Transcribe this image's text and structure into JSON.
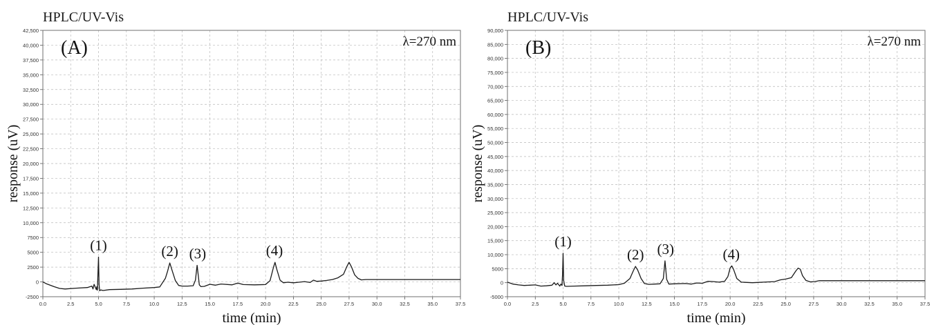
{
  "chart_data": [
    {
      "type": "line",
      "instrument_title": "HPLC/UV-Vis",
      "panel_label": "(A)",
      "wavelength_label": "λ=270 nm",
      "xlabel": "time (min)",
      "ylabel": "response (uV)",
      "xlim": [
        0,
        37.5
      ],
      "ylim": [
        -2500,
        42500
      ],
      "x_ticks": [
        0,
        2.5,
        5,
        7.5,
        10,
        12.5,
        15,
        17.5,
        20,
        22.5,
        25,
        27.5,
        30,
        32.5,
        35,
        37.5
      ],
      "x_tick_labels": [
        "0.0",
        "2.5",
        "5.0",
        "7.5",
        "10.0",
        "12.5",
        "15.0",
        "17.5",
        "20.0",
        "22.5",
        "25.0",
        "27.5",
        "30.0",
        "32.5",
        "35.0",
        "37.5"
      ],
      "y_ticks": [
        -2500,
        0,
        2500,
        5000,
        7500,
        10000,
        12500,
        15000,
        17500,
        20000,
        22500,
        25000,
        27500,
        30000,
        32500,
        35000,
        37500,
        40000,
        42500
      ],
      "y_tick_labels": [
        "-2500",
        "0",
        "2500",
        "5000",
        "7500",
        "10,000",
        "12,500",
        "15,000",
        "17,500",
        "20,000",
        "22,500",
        "25,000",
        "27,500",
        "30,000",
        "32,500",
        "35,000",
        "37,500",
        "40,000",
        "42,500"
      ],
      "grid": true,
      "peak_labels": [
        {
          "label": "(1)",
          "x": 5.0,
          "y": 4200
        },
        {
          "label": "(2)",
          "x": 11.4,
          "y": 3200
        },
        {
          "label": "(3)",
          "x": 13.9,
          "y": 2800
        },
        {
          "label": "(4)",
          "x": 20.8,
          "y": 3300
        }
      ],
      "series": [
        {
          "x": [
            0,
            0.3,
            1,
            1.5,
            2,
            3,
            4,
            4.4,
            4.5,
            4.6,
            4.8,
            4.85,
            4.9,
            4.95,
            5.0,
            5.05,
            5.1,
            5.2,
            5.4,
            6,
            7,
            8,
            9,
            10,
            10.5,
            11,
            11.2,
            11.4,
            11.6,
            11.9,
            12.2,
            12.5,
            13,
            13.5,
            13.7,
            13.85,
            13.95,
            14.05,
            14.2,
            14.5,
            15,
            15.5,
            16,
            17,
            17.5,
            18,
            19,
            20,
            20.4,
            20.7,
            20.85,
            21,
            21.3,
            21.6,
            22,
            22.5,
            23,
            23.5,
            24,
            24.3,
            24.6,
            25,
            25.5,
            26,
            26.5,
            27,
            27.3,
            27.5,
            27.7,
            28,
            28.3,
            28.6,
            29,
            30,
            32.5,
            35,
            37.5
          ],
          "y": [
            0,
            -300,
            -800,
            -1100,
            -1200,
            -1050,
            -950,
            -700,
            -1200,
            -400,
            -1300,
            -800,
            -1400,
            1500,
            4200,
            -400,
            -1500,
            -1350,
            -1450,
            -1300,
            -1250,
            -1200,
            -1050,
            -950,
            -850,
            600,
            1800,
            3200,
            2000,
            200,
            -600,
            -700,
            -700,
            -650,
            300,
            2800,
            1200,
            -500,
            -800,
            -750,
            -400,
            -550,
            -350,
            -500,
            -200,
            -450,
            -500,
            -450,
            200,
            2400,
            3300,
            2200,
            300,
            -150,
            -50,
            -150,
            -50,
            50,
            -100,
            300,
            100,
            150,
            250,
            400,
            700,
            1300,
            2600,
            3300,
            2600,
            1200,
            600,
            350,
            400,
            400,
            400,
            400,
            400
          ]
        }
      ]
    },
    {
      "type": "line",
      "instrument_title": "HPLC/UV-Vis",
      "panel_label": "(B)",
      "wavelength_label": "λ=270 nm",
      "xlabel": "time (min)",
      "ylabel": "response (uV)",
      "xlim": [
        0,
        37.5
      ],
      "ylim": [
        -5000,
        90000
      ],
      "x_ticks": [
        0,
        2.5,
        5,
        7.5,
        10,
        12.5,
        15,
        17.5,
        20,
        22.5,
        25,
        27.5,
        30,
        32.5,
        35,
        37.5
      ],
      "x_tick_labels": [
        "0.0",
        "2.5",
        "5.0",
        "7.5",
        "10.0",
        "12.5",
        "15.0",
        "17.5",
        "20.0",
        "22.5",
        "25.0",
        "27.5",
        "30.0",
        "32.5",
        "35.0",
        "37.5"
      ],
      "y_ticks": [
        -5000,
        0,
        5000,
        10000,
        15000,
        20000,
        25000,
        30000,
        35000,
        40000,
        45000,
        50000,
        55000,
        60000,
        65000,
        70000,
        75000,
        80000,
        85000,
        90000
      ],
      "y_tick_labels": [
        "-5000",
        "0",
        "5000",
        "10,000",
        "15,000",
        "20,000",
        "25,000",
        "30,000",
        "35,000",
        "40,000",
        "45,000",
        "50,000",
        "55,000",
        "60,000",
        "65,000",
        "70,000",
        "75,000",
        "80,000",
        "85,000",
        "90,000"
      ],
      "grid": true,
      "peak_labels": [
        {
          "label": "(1)",
          "x": 5.0,
          "y": 10500
        },
        {
          "label": "(2)",
          "x": 11.5,
          "y": 5800
        },
        {
          "label": "(3)",
          "x": 14.2,
          "y": 7800
        },
        {
          "label": "(4)",
          "x": 20.1,
          "y": 6000
        }
      ],
      "series": [
        {
          "x": [
            0,
            0.5,
            1,
            1.5,
            2,
            2.5,
            3,
            3.5,
            4,
            4.2,
            4.35,
            4.5,
            4.7,
            4.8,
            4.9,
            4.95,
            5.0,
            5.05,
            5.15,
            5.3,
            6,
            7,
            8,
            9,
            10,
            10.5,
            11,
            11.3,
            11.5,
            11.7,
            12,
            12.3,
            12.7,
            13.2,
            13.7,
            14.0,
            14.15,
            14.3,
            14.5,
            15,
            16,
            16.5,
            17,
            17.5,
            18,
            18.5,
            19,
            19.5,
            19.8,
            20.0,
            20.15,
            20.3,
            20.6,
            21,
            21.5,
            22,
            22.5,
            23,
            23.5,
            24,
            24.5,
            25,
            25.5,
            25.9,
            26.1,
            26.3,
            26.5,
            26.8,
            27.2,
            27.6,
            28,
            30,
            32.5,
            35,
            37.5
          ],
          "y": [
            200,
            -500,
            -800,
            -1000,
            -900,
            -800,
            -1200,
            -1100,
            -900,
            0,
            -800,
            -200,
            -1200,
            -500,
            -1000,
            3000,
            10500,
            800,
            -1200,
            -1300,
            -1200,
            -1100,
            -1000,
            -900,
            -700,
            -200,
            1500,
            4200,
            5800,
            4500,
            1500,
            -300,
            -600,
            -500,
            -400,
            1500,
            7800,
            1200,
            -500,
            -400,
            -300,
            -500,
            -100,
            -200,
            500,
            400,
            200,
            500,
            2200,
            5200,
            6000,
            4800,
            1500,
            200,
            100,
            0,
            100,
            200,
            300,
            400,
            1000,
            1300,
            1800,
            4200,
            5200,
            4800,
            2500,
            800,
            300,
            400,
            700,
            700,
            700,
            700,
            700
          ]
        }
      ]
    }
  ]
}
